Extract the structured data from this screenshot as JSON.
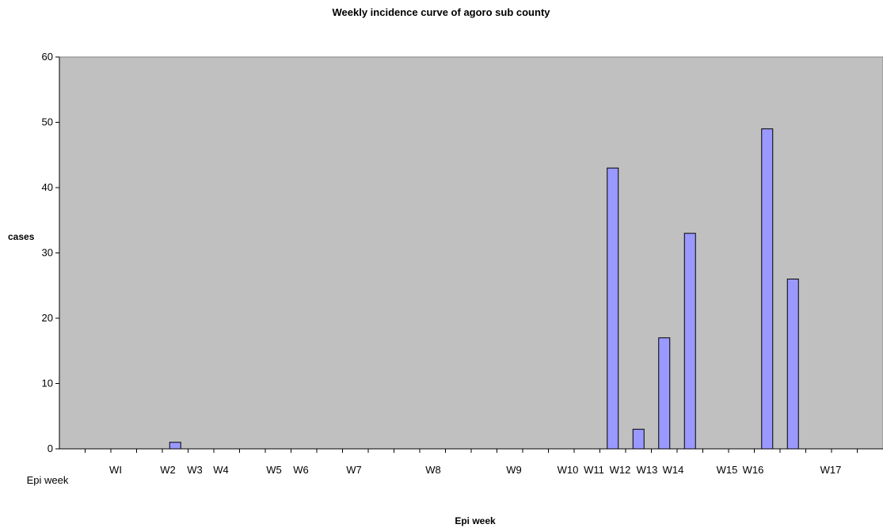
{
  "chart_data": {
    "type": "bar",
    "title": "Weekly incidence curve of agoro sub county",
    "xlabel": "Epi week",
    "ylabel": "cases",
    "ylim": [
      0,
      60
    ],
    "yticks": [
      0,
      10,
      20,
      30,
      40,
      50,
      60
    ],
    "grid": false,
    "legend": "none",
    "bar_color": "#9999ff",
    "plot_background": "#c0c0c0",
    "categories": [
      "Epi week",
      "",
      "",
      "",
      "",
      "",
      "",
      "",
      "",
      "",
      "",
      "",
      "",
      "",
      "",
      "",
      "",
      "",
      "",
      "",
      "",
      "",
      "",
      "",
      "",
      "",
      "",
      "",
      "",
      "",
      "",
      ""
    ],
    "category_labels": [
      "Epi week",
      "WI",
      "W2",
      "W3",
      "W4",
      "W5",
      "W6",
      "W7",
      "W8",
      "W9",
      "W10",
      "W11",
      "W12",
      "W13",
      "W14",
      "W15",
      "W16",
      "W17"
    ],
    "values": [
      0,
      0,
      0,
      0,
      1,
      0,
      0,
      0,
      0,
      0,
      0,
      0,
      0,
      0,
      0,
      0,
      0,
      0,
      0,
      0,
      0,
      43,
      3,
      17,
      33,
      0,
      0,
      49,
      26,
      0,
      0,
      0
    ]
  }
}
